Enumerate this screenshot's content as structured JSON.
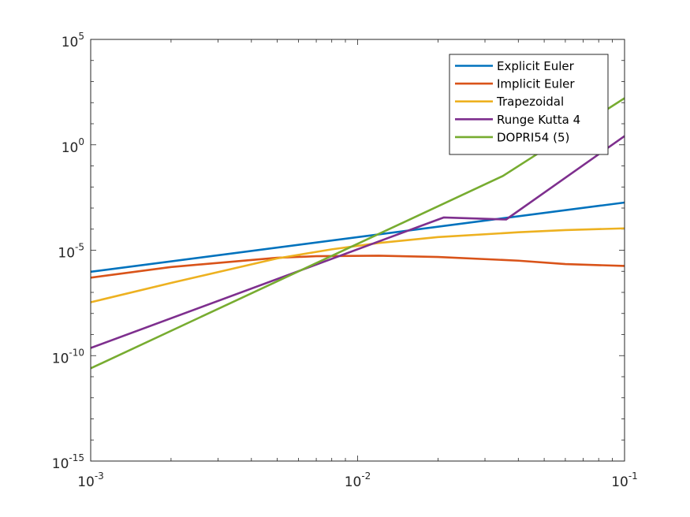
{
  "chart_data": {
    "type": "line",
    "title": "",
    "xlabel": "",
    "ylabel": "",
    "xscale": "log",
    "yscale": "log",
    "xlim": [
      0.001,
      0.1
    ],
    "ylim": [
      1e-15,
      100000
    ],
    "grid": false,
    "legend_position": "top-right",
    "x_ticks": [
      {
        "value": 0.001,
        "base": "10",
        "exp": "-3"
      },
      {
        "value": 0.01,
        "base": "10",
        "exp": "-2"
      },
      {
        "value": 0.1,
        "base": "10",
        "exp": "-1"
      }
    ],
    "y_ticks": [
      {
        "value": 1e-15,
        "base": "10",
        "exp": "-15"
      },
      {
        "value": 1e-10,
        "base": "10",
        "exp": "-10"
      },
      {
        "value": 1e-05,
        "base": "10",
        "exp": "-5"
      },
      {
        "value": 1,
        "base": "10",
        "exp": "0"
      },
      {
        "value": 100000,
        "base": "10",
        "exp": "5"
      }
    ],
    "series": [
      {
        "name": "Explicit Euler",
        "color": "#0072BD",
        "x": [
          0.001,
          0.1
        ],
        "y": [
          9.5e-07,
          0.00183
        ]
      },
      {
        "name": "Implicit Euler",
        "color": "#D95319",
        "x": [
          0.001,
          0.002,
          0.005,
          0.007,
          0.012,
          0.02,
          0.04,
          0.06,
          0.1
        ],
        "y": [
          5e-07,
          1.6e-06,
          4.4e-06,
          5.2e-06,
          5.5e-06,
          4.8e-06,
          3.2e-06,
          2.2e-06,
          1.8e-06
        ]
      },
      {
        "name": "Trapezoidal",
        "color": "#EDB120",
        "x": [
          0.001,
          0.002,
          0.005,
          0.008,
          0.012,
          0.02,
          0.04,
          0.06,
          0.1
        ],
        "y": [
          3.4e-08,
          2.8e-07,
          4.1e-06,
          1.1e-05,
          2.2e-05,
          4.2e-05,
          7.1e-05,
          9e-05,
          0.000109
        ]
      },
      {
        "name": "Runge Kutta 4",
        "color": "#7E2F8E",
        "x": [
          0.001,
          0.021,
          0.036,
          0.1
        ],
        "y": [
          2.3e-10,
          0.000357,
          0.000287,
          2.6
        ]
      },
      {
        "name": "DOPRI54 (5)",
        "color": "#77AC30",
        "x": [
          0.001,
          0.035,
          0.1
        ],
        "y": [
          2.5e-11,
          0.0331,
          163
        ]
      }
    ]
  }
}
